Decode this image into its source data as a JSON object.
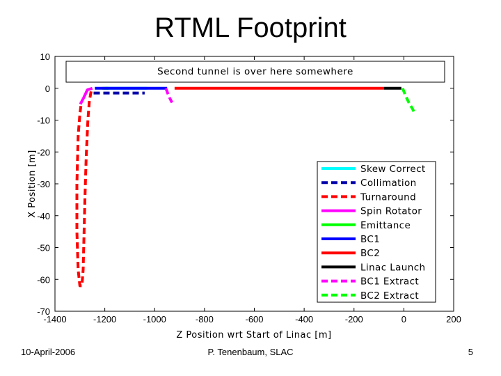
{
  "slide": {
    "title": "RTML Footprint",
    "footer_left": "10-April-2006",
    "footer_center": "P. Tenenbaum, SLAC",
    "footer_right": "5"
  },
  "colors": {
    "skew_correct": "#00ffff",
    "collimation": "#0000aa",
    "turnaround": "#ff0000",
    "spin_rotator": "#ff00ff",
    "emittance": "#00ff00",
    "bc1": "#0000ff",
    "bc2": "#ff0000",
    "linac_launch": "#000000",
    "bc1_extract": "#ff00ff",
    "bc2_extract": "#00ff00"
  },
  "chart_data": {
    "type": "line",
    "xlabel": "Z Position wrt Start of Linac [m]",
    "ylabel": "X Position [m]",
    "xlim": [
      -1400,
      200
    ],
    "ylim": [
      -70,
      10
    ],
    "xticks": [
      "-1400",
      "-1200",
      "-1000",
      "-800",
      "-600",
      "-400",
      "-200",
      "0",
      "200"
    ],
    "yticks": [
      "10",
      "0",
      "-10",
      "-20",
      "-30",
      "-40",
      "-50",
      "-60",
      "-70"
    ],
    "annotation": "Second tunnel is over here somewhere",
    "legend_placement": "bottom-right",
    "series": [
      {
        "name": "Skew Correct",
        "color": "#00ffff",
        "dash": "solid",
        "points": [
          [
            -1200,
            0
          ],
          [
            -1100,
            0
          ],
          [
            -1040,
            0
          ],
          [
            -1030,
            0
          ]
        ]
      },
      {
        "name": "Collimation",
        "color": "#0000aa",
        "dash": "dashed",
        "points": [
          [
            -1245,
            -1.5
          ],
          [
            -1200,
            -1.5
          ],
          [
            -1150,
            -1.5
          ],
          [
            -1100,
            -1.5
          ],
          [
            -1040,
            -1.5
          ]
        ]
      },
      {
        "name": "Turnaround",
        "color": "#ff0000",
        "dash": "dashed",
        "points": [
          [
            -1255,
            -1
          ],
          [
            -1262,
            -4
          ],
          [
            -1268,
            -10
          ],
          [
            -1275,
            -22
          ],
          [
            -1280,
            -35
          ],
          [
            -1284,
            -48
          ],
          [
            -1287,
            -57
          ],
          [
            -1292,
            -62
          ],
          [
            -1300,
            -62
          ],
          [
            -1307,
            -57
          ],
          [
            -1312,
            -45
          ],
          [
            -1312,
            -30
          ],
          [
            -1307,
            -15
          ],
          [
            -1300,
            -8
          ],
          [
            -1295,
            -5
          ]
        ]
      },
      {
        "name": "Spin Rotator",
        "color": "#ff00ff",
        "dash": "solid",
        "points": [
          [
            -1298,
            -5
          ],
          [
            -1285,
            -3
          ],
          [
            -1270,
            -0.5
          ],
          [
            -1250,
            0
          ]
        ]
      },
      {
        "name": "Emittance",
        "color": "#00ff00",
        "dash": "solid",
        "points": [
          [
            -1210,
            0
          ],
          [
            -1185,
            0
          ]
        ]
      },
      {
        "name": "BC1",
        "color": "#0000ff",
        "dash": "solid",
        "points": [
          [
            -1240,
            0
          ],
          [
            -1200,
            0
          ],
          [
            -1120,
            0
          ],
          [
            -1040,
            0
          ],
          [
            -960,
            0
          ],
          [
            -950,
            0
          ]
        ]
      },
      {
        "name": "BC2",
        "color": "#ff0000",
        "dash": "solid",
        "points": [
          [
            -920,
            0
          ],
          [
            -800,
            0
          ],
          [
            -600,
            0
          ],
          [
            -400,
            0
          ],
          [
            -200,
            0
          ],
          [
            -80,
            0
          ]
        ]
      },
      {
        "name": "Linac Launch",
        "color": "#000000",
        "dash": "solid",
        "points": [
          [
            -80,
            0
          ],
          [
            -40,
            0
          ],
          [
            -10,
            0
          ]
        ]
      },
      {
        "name": "BC1 Extract",
        "color": "#ff00ff",
        "dash": "dashed",
        "points": [
          [
            -955,
            0
          ],
          [
            -948,
            -1.5
          ],
          [
            -940,
            -3
          ],
          [
            -930,
            -4.5
          ]
        ]
      },
      {
        "name": "BC2 Extract",
        "color": "#00ff00",
        "dash": "dashed",
        "points": [
          [
            -5,
            0
          ],
          [
            5,
            -2
          ],
          [
            20,
            -4.5
          ],
          [
            35,
            -6.5
          ],
          [
            45,
            -8
          ]
        ]
      }
    ]
  }
}
